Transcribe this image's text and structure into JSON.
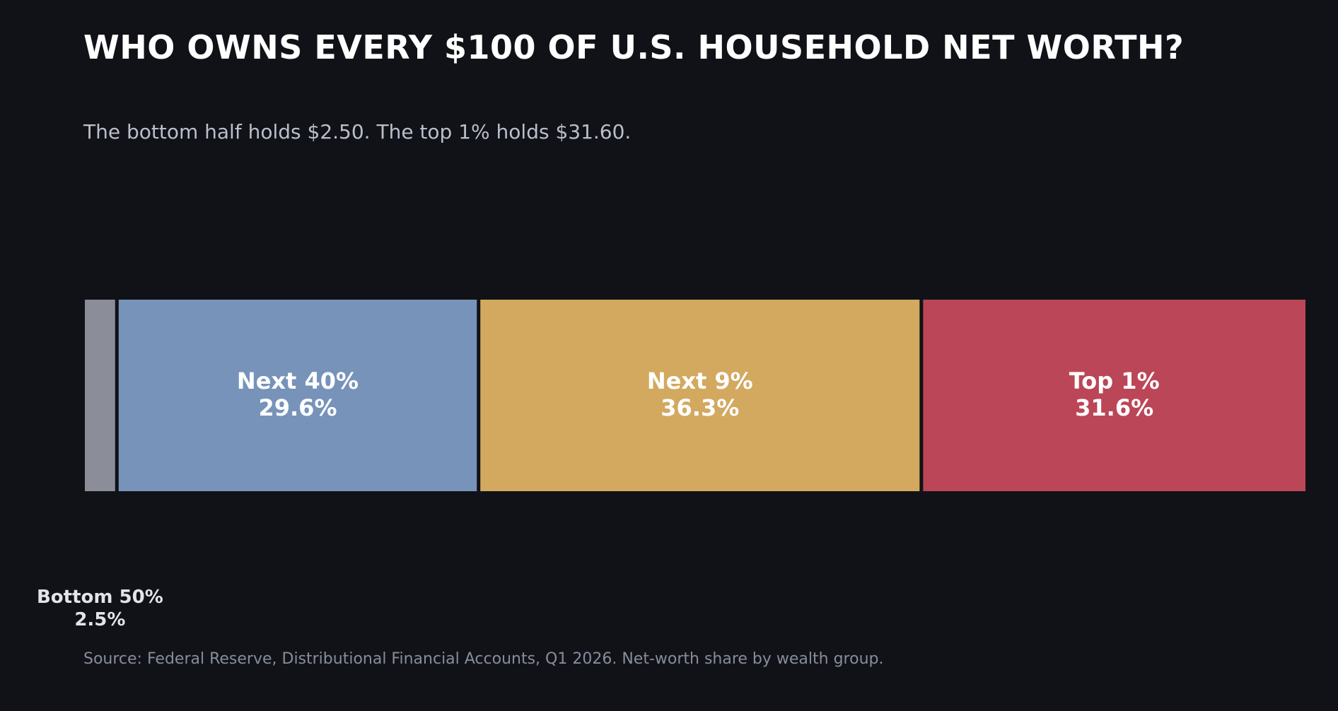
{
  "title": "WHO OWNS EVERY $100 OF U.S. HOUSEHOLD NET WORTH?",
  "subtitle": "The bottom half holds $2.50. The top 1% holds $31.60.",
  "source": "Source: Federal Reserve, Distributional Financial Accounts, Q1 2026. Net-worth share by wealth group.",
  "chart_data": {
    "type": "bar",
    "orientation": "horizontal-stacked",
    "unit": "%",
    "total": 100,
    "categories": [
      "Bottom 50%",
      "Next 40%",
      "Next 9%",
      "Top 1%"
    ],
    "values": [
      2.5,
      29.6,
      36.3,
      31.6
    ],
    "value_labels": [
      "2.5%",
      "29.6%",
      "36.3%",
      "31.6%"
    ],
    "colors": [
      "#8b8d98",
      "#7793b9",
      "#d2a95f",
      "#bb4657"
    ],
    "title": "WHO OWNS EVERY $100 OF U.S. HOUSEHOLD NET WORTH?",
    "subtitle": "The bottom half holds $2.50. The top 1% holds $31.60.",
    "xlabel": "",
    "ylabel": "",
    "grid": false,
    "legend": "none"
  }
}
